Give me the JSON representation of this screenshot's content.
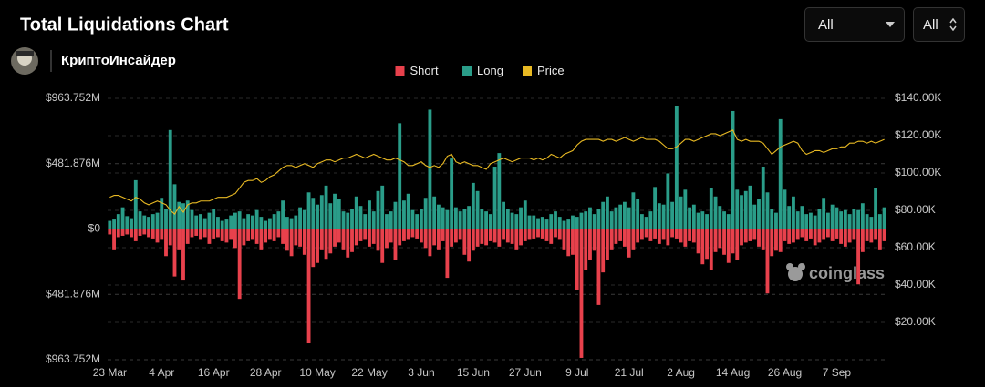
{
  "header": {
    "author": "КриптоИнсайдер"
  },
  "controls": {
    "range": "All",
    "mode": "All"
  },
  "watermark": "coinglass",
  "chart_data": {
    "type": "bar",
    "title": "Total Liquidations Chart",
    "categories": [
      "23 Mar",
      null,
      null,
      null,
      null,
      null,
      null,
      null,
      null,
      null,
      null,
      null,
      "4 Apr",
      null,
      null,
      null,
      null,
      null,
      null,
      null,
      null,
      null,
      null,
      null,
      "16 Apr",
      null,
      null,
      null,
      null,
      null,
      null,
      null,
      null,
      null,
      null,
      null,
      "28 Apr",
      null,
      null,
      null,
      null,
      null,
      null,
      null,
      null,
      null,
      null,
      null,
      "10 May",
      null,
      null,
      null,
      null,
      null,
      null,
      null,
      null,
      null,
      null,
      null,
      "22 May",
      null,
      null,
      null,
      null,
      null,
      null,
      null,
      null,
      null,
      null,
      null,
      "3 Jun",
      null,
      null,
      null,
      null,
      null,
      null,
      null,
      null,
      null,
      null,
      null,
      "15 Jun",
      null,
      null,
      null,
      null,
      null,
      null,
      null,
      null,
      null,
      null,
      null,
      "27 Jun",
      null,
      null,
      null,
      null,
      null,
      null,
      null,
      null,
      null,
      null,
      null,
      "9 Jul",
      null,
      null,
      null,
      null,
      null,
      null,
      null,
      null,
      null,
      null,
      null,
      "21 Jul",
      null,
      null,
      null,
      null,
      null,
      null,
      null,
      null,
      null,
      null,
      null,
      "2 Aug",
      null,
      null,
      null,
      null,
      null,
      null,
      null,
      null,
      null,
      null,
      null,
      "14 Aug",
      null,
      null,
      null,
      null,
      null,
      null,
      null,
      null,
      null,
      null,
      null,
      "26 Aug",
      null,
      null,
      null,
      null,
      null,
      null,
      null,
      null,
      null,
      null,
      null,
      "7 Sep",
      null,
      null,
      null,
      null,
      null,
      null,
      null,
      null,
      null,
      null,
      null
    ],
    "series": [
      {
        "name": "Short",
        "color": "#e8414c",
        "values": [
          -40,
          -150,
          -60,
          -50,
          -40,
          -60,
          -90,
          -50,
          -40,
          -60,
          -70,
          -100,
          -80,
          -200,
          -120,
          -350,
          -150,
          -380,
          -110,
          -60,
          -50,
          -80,
          -60,
          -110,
          -70,
          -60,
          -90,
          -100,
          -80,
          -140,
          -515,
          -120,
          -90,
          -80,
          -110,
          -150,
          -100,
          -80,
          -90,
          -60,
          -110,
          -160,
          -200,
          -120,
          -130,
          -190,
          -843,
          -280,
          -250,
          -150,
          -220,
          -180,
          -130,
          -100,
          -150,
          -210,
          -170,
          -120,
          -90,
          -80,
          -130,
          -110,
          -160,
          -250,
          -140,
          -100,
          -230,
          -120,
          -90,
          -80,
          -60,
          -70,
          -100,
          -140,
          -200,
          -120,
          -150,
          -90,
          -360,
          -130,
          -100,
          -80,
          -190,
          -240,
          -160,
          -130,
          -110,
          -120,
          -90,
          -100,
          -130,
          -80,
          -100,
          -110,
          -150,
          -120,
          -90,
          -80,
          -70,
          -60,
          -70,
          -90,
          -110,
          -60,
          -80,
          -150,
          -200,
          -190,
          -450,
          -950,
          -300,
          -230,
          -160,
          -560,
          -320,
          -230,
          -150,
          -110,
          -90,
          -130,
          -210,
          -150,
          -100,
          -80,
          -60,
          -90,
          -70,
          -110,
          -80,
          -120,
          -60,
          -70,
          -100,
          -130,
          -90,
          -100,
          -180,
          -260,
          -220,
          -300,
          -170,
          -140,
          -190,
          -250,
          -180,
          -230,
          -120,
          -100,
          -90,
          -80,
          -130,
          -150,
          -475,
          -200,
          -160,
          -170,
          -90,
          -110,
          -100,
          -80,
          -60,
          -90,
          -70,
          -120,
          -100,
          -80,
          -60,
          -90,
          -70,
          -110,
          -130,
          -100,
          -80,
          -408,
          -170,
          -90,
          -100,
          -80,
          -150,
          -90
        ]
      },
      {
        "name": "Long",
        "color": "#2a9d89",
        "values": [
          60,
          70,
          110,
          160,
          95,
          80,
          360,
          130,
          100,
          90,
          110,
          120,
          230,
          150,
          730,
          330,
          200,
          190,
          210,
          140,
          100,
          110,
          80,
          120,
          150,
          90,
          60,
          70,
          100,
          120,
          130,
          80,
          110,
          100,
          140,
          90,
          60,
          80,
          110,
          130,
          210,
          90,
          80,
          100,
          160,
          140,
          270,
          230,
          180,
          250,
          320,
          190,
          260,
          220,
          130,
          120,
          150,
          240,
          170,
          110,
          210,
          130,
          280,
          320,
          110,
          130,
          200,
          780,
          210,
          260,
          140,
          110,
          150,
          230,
          880,
          240,
          180,
          160,
          140,
          520,
          160,
          130,
          150,
          170,
          340,
          280,
          150,
          130,
          110,
          460,
          560,
          200,
          150,
          120,
          110,
          160,
          210,
          100,
          100,
          80,
          90,
          70,
          110,
          130,
          90,
          60,
          70,
          100,
          90,
          120,
          130,
          160,
          110,
          150,
          200,
          240,
          130,
          160,
          180,
          200,
          160,
          270,
          220,
          110,
          90,
          130,
          310,
          190,
          180,
          410,
          200,
          910,
          240,
          290,
          160,
          180,
          120,
          130,
          110,
          300,
          240,
          170,
          130,
          110,
          870,
          290,
          250,
          280,
          320,
          180,
          220,
          460,
          270,
          150,
          120,
          810,
          290,
          170,
          240,
          130,
          170,
          110,
          120,
          100,
          150,
          230,
          120,
          180,
          160,
          130,
          140,
          110,
          150,
          140,
          190,
          110,
          90,
          300,
          110,
          160
        ]
      },
      {
        "name": "Price",
        "color": "#e8b923",
        "type": "line",
        "axis": "y2",
        "values": [
          87,
          88,
          88,
          87,
          86,
          85,
          87,
          86,
          84,
          83,
          84,
          85,
          84,
          83,
          80,
          78,
          82,
          79,
          83,
          84,
          84,
          85,
          85,
          85,
          86,
          87,
          87,
          87,
          88,
          89,
          92,
          95,
          96,
          96,
          97,
          95,
          96,
          98,
          99,
          101,
          103,
          104,
          104,
          103,
          104,
          105,
          104,
          103,
          105,
          106,
          107,
          107,
          106,
          107,
          108,
          108,
          109,
          110,
          109,
          108,
          109,
          110,
          109,
          108,
          107,
          107,
          108,
          107,
          106,
          104,
          104,
          105,
          106,
          104,
          103,
          104,
          103,
          105,
          109,
          110,
          106,
          105,
          106,
          105,
          104,
          104,
          103,
          102,
          105,
          106,
          107,
          108,
          107,
          106,
          107,
          108,
          108,
          108,
          107,
          108,
          107,
          108,
          110,
          109,
          108,
          110,
          111,
          112,
          115,
          117,
          118,
          118,
          118,
          118,
          117,
          118,
          118,
          117,
          118,
          119,
          118,
          117,
          118,
          119,
          118,
          118,
          118,
          117,
          115,
          113,
          113,
          114,
          116,
          118,
          118,
          117,
          118,
          119,
          120,
          121,
          121,
          120,
          121,
          122,
          123,
          118,
          117,
          118,
          117,
          117,
          117,
          116,
          113,
          110,
          112,
          114,
          115,
          116,
          117,
          116,
          112,
          110,
          111,
          112,
          112,
          111,
          112,
          113,
          113,
          114,
          114,
          116,
          116,
          117,
          117,
          116,
          117,
          116,
          117,
          118
        ]
      }
    ],
    "ylim": [
      -963.752,
      963.752
    ],
    "yticks": [
      {
        "value": 963.752,
        "label": "$963.752M"
      },
      {
        "value": 481.876,
        "label": "$481.876M"
      },
      {
        "value": 0,
        "label": "$0"
      },
      {
        "value": -481.876,
        "label": "$481.876M"
      },
      {
        "value": -963.752,
        "label": "$963.752M"
      }
    ],
    "y2lim": [
      0,
      140
    ],
    "y2ticks": [
      {
        "value": 140,
        "label": "$140.00K"
      },
      {
        "value": 120,
        "label": "$120.00K"
      },
      {
        "value": 100,
        "label": "$100.00K"
      },
      {
        "value": 80,
        "label": "$80.00K"
      },
      {
        "value": 60,
        "label": "$60.00K"
      },
      {
        "value": 40,
        "label": "$40.00K"
      },
      {
        "value": 20,
        "label": "$20.00K"
      }
    ],
    "grid": true,
    "legend": "top"
  }
}
